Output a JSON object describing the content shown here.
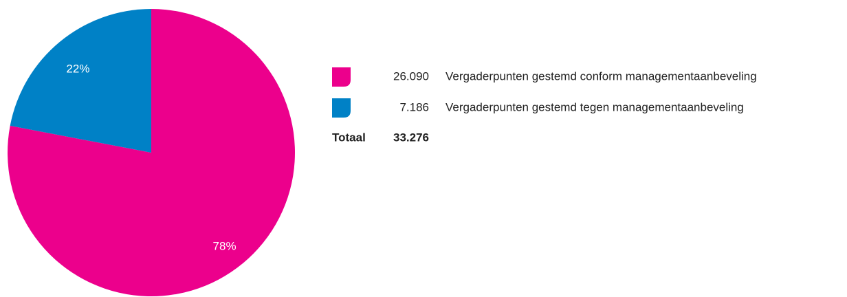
{
  "chart_data": {
    "type": "pie",
    "categories": [
      "Vergaderpunten gestemd conform managementaanbeveling",
      "Vergaderpunten gestemd tegen managementaanbeveling"
    ],
    "values": [
      78,
      22
    ],
    "value_labels": [
      "78%",
      "22%"
    ],
    "colors": [
      "#ec008c",
      "#0081c6"
    ],
    "counts": [
      "26.090",
      "7.186"
    ],
    "total_label": "Totaal",
    "total": "33.276"
  }
}
